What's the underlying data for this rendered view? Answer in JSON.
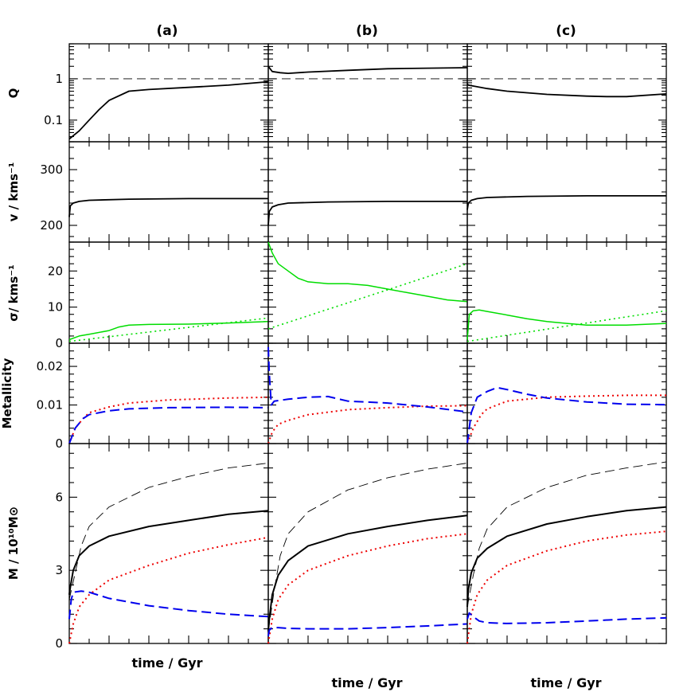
{
  "figure": {
    "column_labels": [
      "(a)",
      "(b)",
      "(c)"
    ],
    "xlabel": "time / Gyr",
    "colors": {
      "total": "#000000",
      "reference": "#000000",
      "green": "#00dd00",
      "red": "#ee0000",
      "blue": "#0000ee"
    }
  },
  "chart_data": [
    {
      "type": "line",
      "panel": "Q",
      "ylabel": "Q",
      "yscale": "log",
      "ylim": [
        0.03,
        7
      ],
      "yticklabels": [
        "0.1",
        "1"
      ],
      "x_range_gyr": [
        0,
        10
      ],
      "reference_line": 1,
      "columns": [
        {
          "label": "(a)",
          "x": [
            0,
            0.5,
            1,
            1.5,
            2,
            3,
            4,
            6,
            8,
            10
          ],
          "y": [
            0.035,
            0.055,
            0.1,
            0.18,
            0.3,
            0.5,
            0.55,
            0.62,
            0.7,
            0.85
          ]
        },
        {
          "label": "(b)",
          "x": [
            0,
            0.2,
            0.6,
            1,
            2,
            4,
            6,
            8,
            10
          ],
          "y": [
            2.0,
            1.5,
            1.4,
            1.35,
            1.45,
            1.6,
            1.75,
            1.8,
            1.85
          ]
        },
        {
          "label": "(c)",
          "x": [
            0,
            0.05,
            1,
            2,
            4,
            6,
            7,
            8,
            10
          ],
          "y": [
            0.75,
            0.7,
            0.58,
            0.5,
            0.42,
            0.38,
            0.37,
            0.37,
            0.43
          ]
        }
      ]
    },
    {
      "type": "line",
      "panel": "v",
      "ylabel": "v / kms⁻¹",
      "ylim": [
        170,
        350
      ],
      "yticks": [
        200,
        300
      ],
      "x_range_gyr": [
        0,
        10
      ],
      "columns": [
        {
          "label": "(a)",
          "x": [
            0,
            0.05,
            0.2,
            0.5,
            1,
            3,
            6,
            10
          ],
          "y": [
            215,
            235,
            240,
            243,
            245,
            247,
            248,
            248
          ]
        },
        {
          "label": "(b)",
          "x": [
            0,
            0.05,
            0.2,
            0.5,
            1,
            3,
            6,
            10
          ],
          "y": [
            200,
            225,
            233,
            237,
            240,
            242,
            243,
            243
          ]
        },
        {
          "label": "(c)",
          "x": [
            0,
            0.05,
            0.2,
            0.5,
            1,
            3,
            6,
            10
          ],
          "y": [
            228,
            240,
            245,
            248,
            250,
            252,
            253,
            253
          ]
        }
      ]
    },
    {
      "type": "line",
      "panel": "sigma",
      "ylabel": "σ/ kms⁻¹",
      "ylim": [
        0,
        28
      ],
      "yticks": [
        0,
        10,
        20
      ],
      "x_range_gyr": [
        0,
        10
      ],
      "columns": [
        {
          "label": "(a)",
          "solid": {
            "x": [
              0,
              0.5,
              1,
              2,
              2.5,
              3,
              4,
              6,
              8,
              10
            ],
            "y": [
              1,
              2,
              2.5,
              3.5,
              4.5,
              5,
              5.2,
              5.3,
              5.6,
              6
            ]
          },
          "dotted": {
            "x": [
              0,
              10
            ],
            "y": [
              0.5,
              7
            ]
          }
        },
        {
          "label": "(b)",
          "solid": {
            "x": [
              0,
              0.2,
              0.5,
              1,
              1.5,
              2,
              3,
              4,
              5,
              6,
              7,
              8,
              9,
              10
            ],
            "y": [
              28,
              25,
              22,
              20,
              18,
              17,
              16.5,
              16.5,
              16,
              15,
              14,
              13,
              12,
              11.5
            ]
          },
          "dotted": {
            "x": [
              0,
              10
            ],
            "y": [
              4,
              22
            ]
          }
        },
        {
          "label": "(c)",
          "solid": {
            "x": [
              0,
              0.1,
              0.3,
              0.6,
              1,
              2,
              3,
              4,
              5,
              6,
              8,
              10
            ],
            "y": [
              1,
              8,
              9,
              9.2,
              8.8,
              7.8,
              6.8,
              6,
              5.5,
              5,
              5,
              5.5
            ]
          },
          "dotted": {
            "x": [
              0,
              10
            ],
            "y": [
              0.5,
              9
            ]
          }
        }
      ]
    },
    {
      "type": "line",
      "panel": "metallicity",
      "ylabel": "Metallicity",
      "ylim": [
        0,
        0.026
      ],
      "yticks": [
        0,
        0.01,
        0.02
      ],
      "yticklabels": [
        "0",
        "0.01",
        "0.02"
      ],
      "x_range_gyr": [
        0,
        10
      ],
      "columns": [
        {
          "label": "(a)",
          "dotted": {
            "x": [
              0,
              0.3,
              0.7,
              1,
              2,
              3,
              5,
              8,
              10
            ],
            "y": [
              0,
              0.004,
              0.0065,
              0.008,
              0.0095,
              0.0105,
              0.0113,
              0.0118,
              0.012
            ]
          },
          "dashed": {
            "x": [
              0,
              0.3,
              0.7,
              1,
              2,
              3,
              5,
              8,
              10
            ],
            "y": [
              0,
              0.004,
              0.0065,
              0.0075,
              0.0085,
              0.009,
              0.0093,
              0.0094,
              0.0093
            ]
          }
        },
        {
          "label": "(b)",
          "dotted": {
            "x": [
              0,
              0.2,
              0.5,
              1,
              2,
              4,
              6,
              8,
              10
            ],
            "y": [
              0,
              0.003,
              0.005,
              0.006,
              0.0075,
              0.0088,
              0.0093,
              0.0097,
              0.0098
            ]
          },
          "dashed": {
            "x": [
              0,
              0.05,
              0.15,
              0.3,
              1,
              2,
              3,
              4,
              6,
              8,
              10
            ],
            "y": [
              0.025,
              0.018,
              0.01,
              0.011,
              0.0115,
              0.012,
              0.0122,
              0.011,
              0.0105,
              0.0095,
              0.0082
            ]
          }
        },
        {
          "label": "(c)",
          "dotted": {
            "x": [
              0,
              0.3,
              0.7,
              1,
              2,
              4,
              6,
              8,
              10
            ],
            "y": [
              0,
              0.004,
              0.0075,
              0.009,
              0.011,
              0.012,
              0.0123,
              0.0125,
              0.0125
            ]
          },
          "dashed": {
            "x": [
              0,
              0.2,
              0.5,
              1,
              1.5,
              2,
              3,
              4,
              6,
              8,
              10
            ],
            "y": [
              0,
              0.008,
              0.012,
              0.0135,
              0.0145,
              0.014,
              0.0128,
              0.0118,
              0.0108,
              0.0102,
              0.0101
            ]
          }
        }
      ]
    },
    {
      "type": "line",
      "panel": "mass",
      "ylabel": "M / 10¹⁰M⊙",
      "ylim": [
        0,
        8.2
      ],
      "yticks": [
        0,
        3,
        6
      ],
      "x_range_gyr": [
        0,
        10
      ],
      "columns": [
        {
          "label": "(a)",
          "solid": {
            "x": [
              0,
              0.05,
              0.2,
              0.5,
              1,
              2,
              4,
              6,
              8,
              10
            ],
            "y": [
              2.0,
              2.3,
              3.0,
              3.6,
              4.0,
              4.4,
              4.8,
              5.05,
              5.3,
              5.45
            ]
          },
          "thin_dashed": {
            "x": [
              0,
              0.3,
              0.6,
              1,
              2,
              4,
              6,
              8,
              10
            ],
            "y": [
              1.8,
              2.9,
              4.0,
              4.8,
              5.6,
              6.4,
              6.85,
              7.2,
              7.4
            ]
          },
          "dotted": {
            "x": [
              0,
              0.2,
              0.5,
              1,
              2,
              4,
              6,
              8,
              10
            ],
            "y": [
              0,
              0.8,
              1.5,
              2.0,
              2.6,
              3.2,
              3.7,
              4.05,
              4.35
            ]
          },
          "dashed": {
            "x": [
              0,
              0.1,
              0.2,
              0.6,
              1,
              2,
              4,
              6,
              8,
              10
            ],
            "y": [
              1.0,
              1.8,
              2.1,
              2.15,
              2.1,
              1.85,
              1.55,
              1.35,
              1.2,
              1.1
            ]
          }
        },
        {
          "label": "(b)",
          "solid": {
            "x": [
              0,
              0.05,
              0.2,
              0.5,
              1,
              2,
              4,
              6,
              8,
              10
            ],
            "y": [
              0.5,
              1.0,
              2.0,
              2.8,
              3.4,
              4.0,
              4.5,
              4.8,
              5.05,
              5.25
            ]
          },
          "thin_dashed": {
            "x": [
              0,
              0.3,
              0.6,
              1,
              2,
              4,
              6,
              8,
              10
            ],
            "y": [
              0.5,
              2.2,
              3.6,
              4.5,
              5.4,
              6.3,
              6.8,
              7.15,
              7.4
            ]
          },
          "dotted": {
            "x": [
              0,
              0.2,
              0.5,
              1,
              2,
              4,
              6,
              8,
              10
            ],
            "y": [
              0,
              1.0,
              1.8,
              2.4,
              3.0,
              3.6,
              4.0,
              4.3,
              4.5
            ]
          },
          "dashed": {
            "x": [
              0,
              0.05,
              0.2,
              0.5,
              1,
              2,
              4,
              6,
              8,
              10
            ],
            "y": [
              0.3,
              0.55,
              0.65,
              0.65,
              0.62,
              0.6,
              0.6,
              0.65,
              0.72,
              0.8
            ]
          }
        },
        {
          "label": "(c)",
          "solid": {
            "x": [
              0,
              0.05,
              0.2,
              0.5,
              1,
              2,
              4,
              6,
              8,
              10
            ],
            "y": [
              1.5,
              2.2,
              2.9,
              3.5,
              3.9,
              4.4,
              4.9,
              5.2,
              5.45,
              5.6
            ]
          },
          "thin_dashed": {
            "x": [
              0,
              0.3,
              0.6,
              1,
              2,
              4,
              6,
              8,
              10
            ],
            "y": [
              1.5,
              2.8,
              3.9,
              4.7,
              5.6,
              6.4,
              6.9,
              7.2,
              7.45
            ]
          },
          "dotted": {
            "x": [
              0,
              0.2,
              0.5,
              1,
              2,
              4,
              6,
              8,
              10
            ],
            "y": [
              0,
              1.2,
              2.0,
              2.6,
              3.2,
              3.8,
              4.2,
              4.45,
              4.6
            ]
          },
          "dashed": {
            "x": [
              0,
              0.1,
              0.3,
              0.6,
              1,
              2,
              4,
              6,
              8,
              10
            ],
            "y": [
              1.0,
              1.25,
              1.1,
              0.92,
              0.85,
              0.82,
              0.85,
              0.92,
              1.0,
              1.05
            ]
          }
        }
      ]
    }
  ]
}
